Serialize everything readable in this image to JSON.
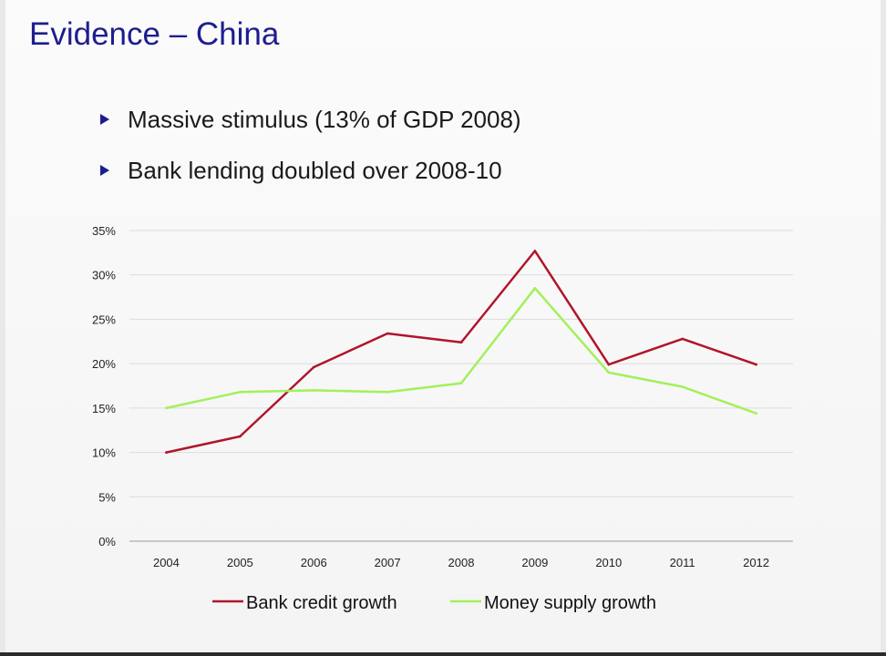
{
  "slide": {
    "title": "Evidence – China",
    "bullets": [
      "Massive stimulus (13% of GDP 2008)",
      "Bank lending doubled over 2008-10"
    ]
  },
  "chart_data": {
    "type": "line",
    "title": "",
    "xlabel": "",
    "ylabel": "",
    "x": [
      "2004",
      "2005",
      "2006",
      "2007",
      "2008",
      "2009",
      "2010",
      "2011",
      "2012"
    ],
    "ylim": [
      0,
      35
    ],
    "yticks": [
      "0%",
      "5%",
      "10%",
      "15%",
      "20%",
      "25%",
      "30%",
      "35%"
    ],
    "grid": true,
    "legend_position": "bottom",
    "series": [
      {
        "name": "Bank credit growth",
        "color": "#b0152c",
        "values": [
          10.0,
          11.8,
          19.6,
          23.4,
          22.4,
          32.7,
          19.9,
          22.8,
          19.9
        ]
      },
      {
        "name": "Money supply growth",
        "color": "#a3f05a",
        "values": [
          15.0,
          16.8,
          17.0,
          16.8,
          17.8,
          28.5,
          19.0,
          17.4,
          14.4
        ]
      }
    ]
  }
}
